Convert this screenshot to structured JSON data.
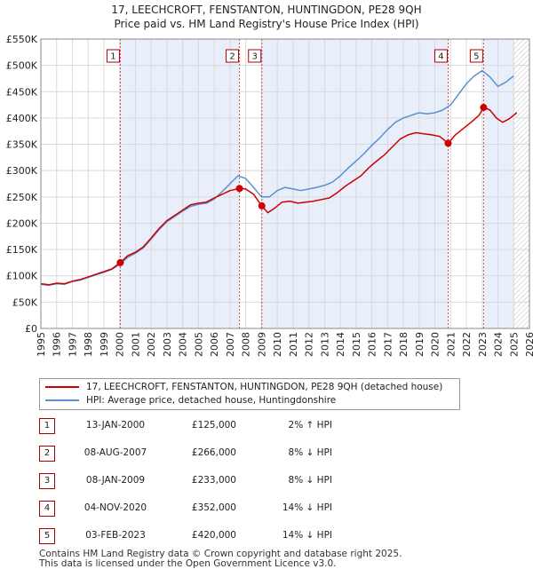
{
  "header": {
    "title_line1": "17, LEECHCROFT, FENSTANTON, HUNTINGDON, PE28 9QH",
    "title_line2": "Price paid vs. HM Land Registry's House Price Index (HPI)"
  },
  "chart_data": {
    "type": "line",
    "xlim": [
      1995,
      2026
    ],
    "ylim": [
      0,
      550000
    ],
    "yticks": [
      0,
      50000,
      100000,
      150000,
      200000,
      250000,
      300000,
      350000,
      400000,
      450000,
      500000,
      550000
    ],
    "ytick_labels": [
      "£0",
      "£50K",
      "£100K",
      "£150K",
      "£200K",
      "£250K",
      "£300K",
      "£350K",
      "£400K",
      "£450K",
      "£500K",
      "£550K"
    ],
    "xticks": [
      1995,
      1996,
      1997,
      1998,
      1999,
      2000,
      2001,
      2002,
      2003,
      2004,
      2005,
      2006,
      2007,
      2008,
      2009,
      2010,
      2011,
      2012,
      2013,
      2014,
      2015,
      2016,
      2017,
      2018,
      2019,
      2020,
      2021,
      2022,
      2023,
      2024,
      2025,
      2026
    ],
    "xtick_labels": [
      "1995",
      "1996",
      "1997",
      "1998",
      "1999",
      "2000",
      "2001",
      "2002",
      "2003",
      "2004",
      "2005",
      "2006",
      "2007",
      "2008",
      "2009",
      "2010",
      "2011",
      "2012",
      "2013",
      "2014",
      "2015",
      "2016",
      "2017",
      "2018",
      "2019",
      "2020",
      "2021",
      "2022",
      "2023",
      "2024",
      "2025",
      "2026"
    ],
    "grid": true,
    "shaded_ranges": [
      [
        2000.04,
        2007.6
      ],
      [
        2009.02,
        2020.84
      ],
      [
        2023.09,
        2025.5
      ]
    ],
    "hatch_from": 2025.0,
    "series": [
      {
        "name": "17, LEECHCROFT, FENSTANTON, HUNTINGDON, PE28 9QH (detached house)",
        "color": "#cc0000",
        "x": [
          1995.0,
          1995.5,
          1996.0,
          1996.5,
          1997.0,
          1997.5,
          1998.0,
          1998.5,
          1999.0,
          1999.5,
          2000.04,
          2000.5,
          2001.0,
          2001.5,
          2002.0,
          2002.5,
          2003.0,
          2003.5,
          2004.0,
          2004.5,
          2005.0,
          2005.5,
          2006.0,
          2006.5,
          2007.0,
          2007.6,
          2008.0,
          2008.5,
          2009.02,
          2009.4,
          2009.8,
          2010.3,
          2010.8,
          2011.3,
          2011.8,
          2012.3,
          2012.8,
          2013.3,
          2013.8,
          2014.3,
          2014.8,
          2015.3,
          2015.8,
          2016.3,
          2016.8,
          2017.3,
          2017.8,
          2018.3,
          2018.8,
          2019.3,
          2019.8,
          2020.3,
          2020.84,
          2021.3,
          2021.8,
          2022.3,
          2022.8,
          2023.09,
          2023.5,
          2023.9,
          2024.3,
          2024.7,
          2025.2
        ],
        "values": [
          85000,
          83000,
          86000,
          85000,
          90000,
          93000,
          98000,
          103000,
          108000,
          113000,
          125000,
          138000,
          145000,
          155000,
          172000,
          190000,
          205000,
          215000,
          225000,
          235000,
          238000,
          240000,
          248000,
          255000,
          262000,
          266000,
          265000,
          255000,
          233000,
          220000,
          228000,
          240000,
          242000,
          238000,
          240000,
          242000,
          245000,
          248000,
          258000,
          270000,
          280000,
          290000,
          305000,
          318000,
          330000,
          345000,
          360000,
          368000,
          372000,
          370000,
          368000,
          365000,
          352000,
          368000,
          380000,
          392000,
          405000,
          420000,
          415000,
          400000,
          392000,
          398000,
          410000
        ]
      },
      {
        "name": "HPI: Average price, detached house, Huntingdonshire",
        "color": "#5b8fd0",
        "x": [
          1995.0,
          1995.5,
          1996.0,
          1996.5,
          1997.0,
          1997.5,
          1998.0,
          1998.5,
          1999.0,
          1999.5,
          2000.0,
          2000.5,
          2001.0,
          2001.5,
          2002.0,
          2002.5,
          2003.0,
          2003.5,
          2004.0,
          2004.5,
          2005.0,
          2005.5,
          2006.0,
          2006.5,
          2007.0,
          2007.5,
          2008.0,
          2008.5,
          2009.0,
          2009.5,
          2010.0,
          2010.5,
          2011.0,
          2011.5,
          2012.0,
          2012.5,
          2013.0,
          2013.5,
          2014.0,
          2014.5,
          2015.0,
          2015.5,
          2016.0,
          2016.5,
          2017.0,
          2017.5,
          2018.0,
          2018.5,
          2019.0,
          2019.5,
          2020.0,
          2020.5,
          2021.0,
          2021.5,
          2022.0,
          2022.5,
          2023.0,
          2023.5,
          2024.0,
          2024.5,
          2025.0
        ],
        "values": [
          84000,
          82000,
          85000,
          84000,
          89000,
          92000,
          97000,
          102000,
          107000,
          112000,
          122000,
          135000,
          143000,
          153000,
          170000,
          188000,
          203000,
          213000,
          223000,
          232000,
          236000,
          238000,
          246000,
          260000,
          275000,
          290000,
          285000,
          268000,
          250000,
          250000,
          262000,
          268000,
          265000,
          262000,
          265000,
          268000,
          272000,
          278000,
          290000,
          305000,
          318000,
          332000,
          348000,
          362000,
          378000,
          392000,
          400000,
          405000,
          410000,
          408000,
          410000,
          415000,
          425000,
          445000,
          465000,
          480000,
          490000,
          478000,
          460000,
          468000,
          480000
        ]
      }
    ],
    "sales": [
      {
        "label": "1",
        "x": 2000.04,
        "value": 125000
      },
      {
        "label": "2",
        "x": 2007.6,
        "value": 266000
      },
      {
        "label": "3",
        "x": 2009.02,
        "value": 233000
      },
      {
        "label": "4",
        "x": 2020.84,
        "value": 352000
      },
      {
        "label": "5",
        "x": 2023.09,
        "value": 420000
      }
    ]
  },
  "legend": {
    "line1": "17, LEECHCROFT, FENSTANTON, HUNTINGDON, PE28 9QH (detached house)",
    "line2": "HPI: Average price, detached house, Huntingdonshire"
  },
  "sales_table": [
    {
      "num": "1",
      "date": "13-JAN-2000",
      "price": "£125,000",
      "hpi": "2% ↑ HPI"
    },
    {
      "num": "2",
      "date": "08-AUG-2007",
      "price": "£266,000",
      "hpi": "8% ↓ HPI"
    },
    {
      "num": "3",
      "date": "08-JAN-2009",
      "price": "£233,000",
      "hpi": "8% ↓ HPI"
    },
    {
      "num": "4",
      "date": "04-NOV-2020",
      "price": "£352,000",
      "hpi": "14% ↓ HPI"
    },
    {
      "num": "5",
      "date": "03-FEB-2023",
      "price": "£420,000",
      "hpi": "14% ↓ HPI"
    }
  ],
  "footer": {
    "line1": "Contains HM Land Registry data © Crown copyright and database right 2025.",
    "line2": "This data is licensed under the Open Government Licence v3.0."
  }
}
